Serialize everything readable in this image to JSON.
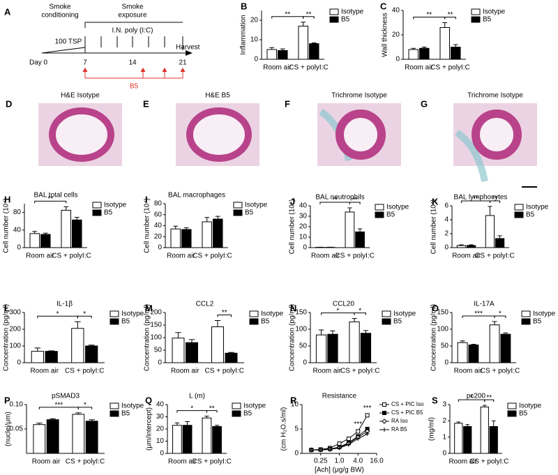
{
  "timeline": {
    "panel": "A",
    "conditioning": [
      "Smoke",
      "conditioning"
    ],
    "exposure": [
      "Smoke",
      "exposure"
    ],
    "tsp": "100 TSP",
    "instillation": "I.N. poly (I:C)",
    "harvest": "Harvest",
    "days": [
      "Day 0",
      "7",
      "14",
      "21"
    ],
    "treatment": "B5"
  },
  "micrographs": [
    {
      "panel": "D",
      "caption": "H&E   Isotype"
    },
    {
      "panel": "E",
      "caption": "H&E   B5"
    },
    {
      "panel": "F",
      "caption": "Trichrome   Isotype"
    },
    {
      "panel": "G",
      "caption": "Trichrome   Isotype"
    }
  ],
  "chart_data": [
    {
      "type": "bar",
      "panel": "B",
      "y_label": "Inflammation",
      "categories": [
        "Room air",
        "CS + polyI:C"
      ],
      "series": [
        {
          "name": "Isotype",
          "color": "#ffffff",
          "values": [
            5,
            17
          ],
          "errors": [
            1,
            2
          ]
        },
        {
          "name": "B5",
          "color": "#000000",
          "values": [
            4.5,
            8
          ],
          "errors": [
            0.8,
            0.4
          ]
        }
      ],
      "ylim": [
        0,
        25
      ],
      "yticks": [
        0,
        10,
        20
      ],
      "significance": [
        "**",
        "**"
      ]
    },
    {
      "type": "bar",
      "panel": "C",
      "y_label": "Wall thickness",
      "categories": [
        "Room air",
        "CS + polyI:C"
      ],
      "series": [
        {
          "name": "Isotype",
          "color": "#ffffff",
          "values": [
            8,
            26
          ],
          "errors": [
            1,
            4
          ]
        },
        {
          "name": "B5",
          "color": "#000000",
          "values": [
            9,
            10
          ],
          "errors": [
            1,
            2
          ]
        }
      ],
      "ylim": [
        0,
        40
      ],
      "yticks": [
        0,
        20,
        40
      ],
      "significance": [
        "**",
        "**"
      ]
    },
    {
      "type": "bar",
      "panel": "H",
      "title": "BAL total cells",
      "y_label": "Cell number (10⁴)",
      "categories": [
        "Room air",
        "CS + polyI:C"
      ],
      "series": [
        {
          "name": "Isotype",
          "color": "#ffffff",
          "values": [
            32,
            85
          ],
          "errors": [
            5,
            8
          ]
        },
        {
          "name": "B5",
          "color": "#000000",
          "values": [
            30,
            63
          ],
          "errors": [
            3,
            6
          ]
        }
      ],
      "ylim": [
        0,
        100
      ],
      "yticks": [
        0,
        40,
        80
      ],
      "significance": [
        "**",
        null
      ]
    },
    {
      "type": "bar",
      "panel": "I",
      "title": "BAL macrophages",
      "y_label": "Cell number (10⁴)",
      "categories": [
        "Room air",
        "CS + polyI:C"
      ],
      "series": [
        {
          "name": "Isotype",
          "color": "#ffffff",
          "values": [
            34,
            47
          ],
          "errors": [
            5,
            8
          ]
        },
        {
          "name": "B5",
          "color": "#000000",
          "values": [
            33,
            52
          ],
          "errors": [
            3,
            5
          ]
        }
      ],
      "ylim": [
        0,
        80
      ],
      "yticks": [
        0,
        20,
        40,
        60,
        80
      ],
      "significance": [
        null,
        null
      ]
    },
    {
      "type": "bar",
      "panel": "J",
      "title": "BAL neutrophils",
      "y_label": "Cell number (10⁴)",
      "categories": [
        "Room air",
        "CS + polyI:C"
      ],
      "series": [
        {
          "name": "Isotype",
          "color": "#ffffff",
          "values": [
            0.3,
            34
          ],
          "errors": [
            0.1,
            4
          ]
        },
        {
          "name": "B5",
          "color": "#000000",
          "values": [
            0.3,
            15
          ],
          "errors": [
            0.1,
            3
          ]
        }
      ],
      "ylim": [
        0,
        40
      ],
      "yticks": [
        0,
        10,
        20,
        30,
        40
      ],
      "significance": [
        "**",
        "**"
      ]
    },
    {
      "type": "bar",
      "panel": "K",
      "title": "BAL lymphocytes",
      "y_label": "Cell number (10⁴)",
      "categories": [
        "Room air",
        "CS + polyI:C"
      ],
      "series": [
        {
          "name": "Isotype",
          "color": "#ffffff",
          "values": [
            0.3,
            4.6
          ],
          "errors": [
            0.1,
            1.3
          ]
        },
        {
          "name": "B5",
          "color": "#000000",
          "values": [
            0.3,
            1.3
          ],
          "errors": [
            0.1,
            0.4
          ]
        }
      ],
      "ylim": [
        0,
        6
      ],
      "yticks": [
        0,
        2,
        4,
        6
      ],
      "significance": [
        "**",
        "**"
      ]
    },
    {
      "type": "bar",
      "panel": "L",
      "title": "IL-1β",
      "y_label": "Concentration (pg/ml)",
      "categories": [
        "Room air",
        "CS + polyI:C"
      ],
      "series": [
        {
          "name": "Isotype",
          "color": "#ffffff",
          "values": [
            68,
            205
          ],
          "errors": [
            20,
            40
          ]
        },
        {
          "name": "B5",
          "color": "#000000",
          "values": [
            68,
            100
          ],
          "errors": [
            3,
            5
          ]
        }
      ],
      "ylim": [
        0,
        300
      ],
      "yticks": [
        0,
        100,
        200,
        300
      ],
      "significance": [
        "*",
        "*"
      ]
    },
    {
      "type": "bar",
      "panel": "M",
      "title": "CCL2",
      "y_label": "Concentration (pg/ml)",
      "categories": [
        "Room air",
        "CS + polyI:C"
      ],
      "series": [
        {
          "name": "Isotype",
          "color": "#ffffff",
          "values": [
            98,
            143
          ],
          "errors": [
            22,
            25
          ]
        },
        {
          "name": "B5",
          "color": "#000000",
          "values": [
            80,
            38
          ],
          "errors": [
            12,
            3
          ]
        }
      ],
      "ylim": [
        0,
        200
      ],
      "yticks": [
        0,
        50,
        100,
        150,
        200
      ],
      "significance": [
        null,
        "**"
      ]
    },
    {
      "type": "bar",
      "panel": "N",
      "title": "CCL20",
      "y_label": "Concentration (pg/ml)",
      "categories": [
        "Room air",
        "CS + polyI:C"
      ],
      "series": [
        {
          "name": "Isotype",
          "color": "#ffffff",
          "values": [
            83,
            122
          ],
          "errors": [
            15,
            10
          ]
        },
        {
          "name": "B5",
          "color": "#000000",
          "values": [
            85,
            88
          ],
          "errors": [
            10,
            8
          ]
        }
      ],
      "ylim": [
        0,
        150
      ],
      "yticks": [
        0,
        50,
        100,
        150
      ],
      "significance": [
        "*",
        "*"
      ]
    },
    {
      "type": "bar",
      "panel": "O",
      "title": "IL-17A",
      "y_label": "Concentration (pg/ml)",
      "categories": [
        "Room air",
        "CS + polyI:C"
      ],
      "series": [
        {
          "name": "Isotype",
          "color": "#ffffff",
          "values": [
            60,
            113
          ],
          "errors": [
            5,
            10
          ]
        },
        {
          "name": "B5",
          "color": "#000000",
          "values": [
            53,
            85
          ],
          "errors": [
            2,
            4
          ]
        }
      ],
      "ylim": [
        0,
        150
      ],
      "yticks": [
        0,
        50,
        100,
        150
      ],
      "significance": [
        "***",
        "*"
      ]
    },
    {
      "type": "bar",
      "panel": "P",
      "title": "pSMAD3",
      "y_label": "(nuclei/μm)",
      "categories": [
        "Room air",
        "CS + polyI:C"
      ],
      "series": [
        {
          "name": "Isotype",
          "color": "#ffffff",
          "values": [
            0.059,
            0.08
          ],
          "errors": [
            0.003,
            0.003
          ]
        },
        {
          "name": "B5",
          "color": "#000000",
          "values": [
            0.069,
            0.066
          ],
          "errors": [
            0.002,
            0.003
          ]
        }
      ],
      "ylim": [
        0,
        0.1
      ],
      "yticks": [
        0.05,
        {
          "value": 0.1,
          "label": "0.10"
        }
      ],
      "significance": [
        "***",
        "*"
      ]
    },
    {
      "type": "bar",
      "panel": "Q",
      "title": "L (m)",
      "y_label": "(μm/intercept)",
      "categories": [
        "Room air",
        "CS + polyI:C"
      ],
      "series": [
        {
          "name": "Isotype",
          "color": "#ffffff",
          "values": [
            23,
            29
          ],
          "errors": [
            2,
            1.5
          ]
        },
        {
          "name": "B5",
          "color": "#000000",
          "values": [
            23,
            22
          ],
          "errors": [
            3,
            1
          ]
        }
      ],
      "ylim": [
        0,
        40
      ],
      "yticks": [
        0,
        10,
        20,
        30,
        40
      ],
      "significance": [
        "*",
        "**"
      ]
    },
    {
      "type": "line",
      "panel": "R",
      "title": "Resistance",
      "y_label": "(cm H₂O.s/ml)",
      "x_label": "[Ach] (μg/g BW)",
      "xscale": "log",
      "x": [
        0.125,
        0.25,
        0.5,
        1,
        2,
        4,
        8
      ],
      "series": [
        {
          "name": "CS + PIC Iso",
          "color": "#000000",
          "marker": "square-open",
          "values": [
            0.7,
            0.8,
            1.1,
            2.0,
            3.0,
            4.5,
            7.8
          ]
        },
        {
          "name": "CS + PIC B5",
          "color": "#000000",
          "marker": "square",
          "values": [
            0.7,
            0.75,
            0.9,
            1.3,
            2.2,
            3.5,
            5.0
          ]
        },
        {
          "name": "RA Iso",
          "color": "#000000",
          "marker": "diamond",
          "values": [
            0.7,
            0.72,
            0.85,
            1.2,
            2.0,
            3.3,
            4.5
          ]
        },
        {
          "name": "RA B5",
          "color": "#000000",
          "marker": "cross",
          "values": [
            0.7,
            0.7,
            0.8,
            1.1,
            1.8,
            3.0,
            4.0
          ]
        }
      ],
      "xlim": [
        0.0625,
        16
      ],
      "xticks": [
        0.25,
        {
          "value": 1,
          "label": "1.0"
        },
        {
          "value": 4,
          "label": "4.0"
        },
        {
          "value": 16,
          "label": "16.0"
        }
      ],
      "ylim": [
        0,
        10
      ],
      "yticks": [
        0,
        5,
        10
      ],
      "annotations": [
        {
          "x": 4,
          "text": "***"
        },
        {
          "x": 8,
          "text": "***"
        }
      ]
    },
    {
      "type": "bar",
      "panel": "S",
      "title": "pc200",
      "y_label": "(mg/ml)",
      "categories": [
        "Room air",
        "CS + polyI:C"
      ],
      "series": [
        {
          "name": "Isotype",
          "color": "#ffffff",
          "values": [
            1.85,
            2.85
          ],
          "errors": [
            0.08,
            0.1
          ]
        },
        {
          "name": "B5",
          "color": "#000000",
          "values": [
            1.65,
            1.65
          ],
          "errors": [
            0.12,
            0.35
          ]
        }
      ],
      "ylim": [
        0,
        3
      ],
      "yticks": [
        0,
        1,
        2,
        3
      ],
      "significance": [
        "*",
        "**"
      ]
    }
  ]
}
